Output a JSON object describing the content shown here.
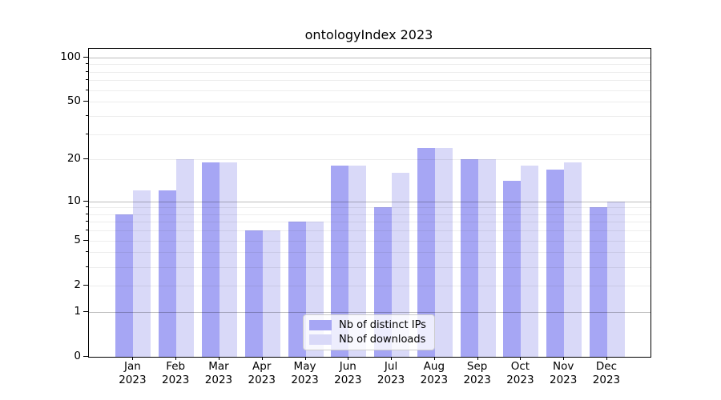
{
  "title": "ontologyIndex 2023",
  "chart_data": {
    "type": "bar",
    "title": "ontologyIndex 2023",
    "year_label": "2023",
    "categories": [
      "Jan",
      "Feb",
      "Mar",
      "Apr",
      "May",
      "Jun",
      "Jul",
      "Aug",
      "Sep",
      "Oct",
      "Nov",
      "Dec"
    ],
    "series": [
      {
        "name": "Nb of distinct IPs",
        "color": "#a6a6f4",
        "values": [
          8,
          12,
          19,
          6,
          7,
          18,
          9,
          24,
          20,
          14,
          17,
          9
        ]
      },
      {
        "name": "Nb of downloads",
        "color": "#d9d9f8",
        "values": [
          12,
          20,
          19,
          6,
          7,
          18,
          16,
          24,
          20,
          18,
          19,
          10
        ]
      }
    ],
    "yscale": "log1p",
    "ylim": [
      0,
      113
    ],
    "y_ticks": [
      0,
      1,
      2,
      5,
      10,
      20,
      50,
      100
    ],
    "y_minor_tick_values": [
      3,
      4,
      6,
      7,
      8,
      9,
      30,
      40,
      60,
      70,
      80,
      90
    ],
    "y_major_gridlines": [
      1,
      10,
      100
    ],
    "y_minor_gridlines": [
      2,
      3,
      4,
      5,
      6,
      7,
      8,
      9,
      20,
      30,
      40,
      50,
      60,
      70,
      80,
      90
    ],
    "grid": true,
    "legend_position": "lower center",
    "axis_color": "#000000",
    "background_color": "#ffffff"
  }
}
